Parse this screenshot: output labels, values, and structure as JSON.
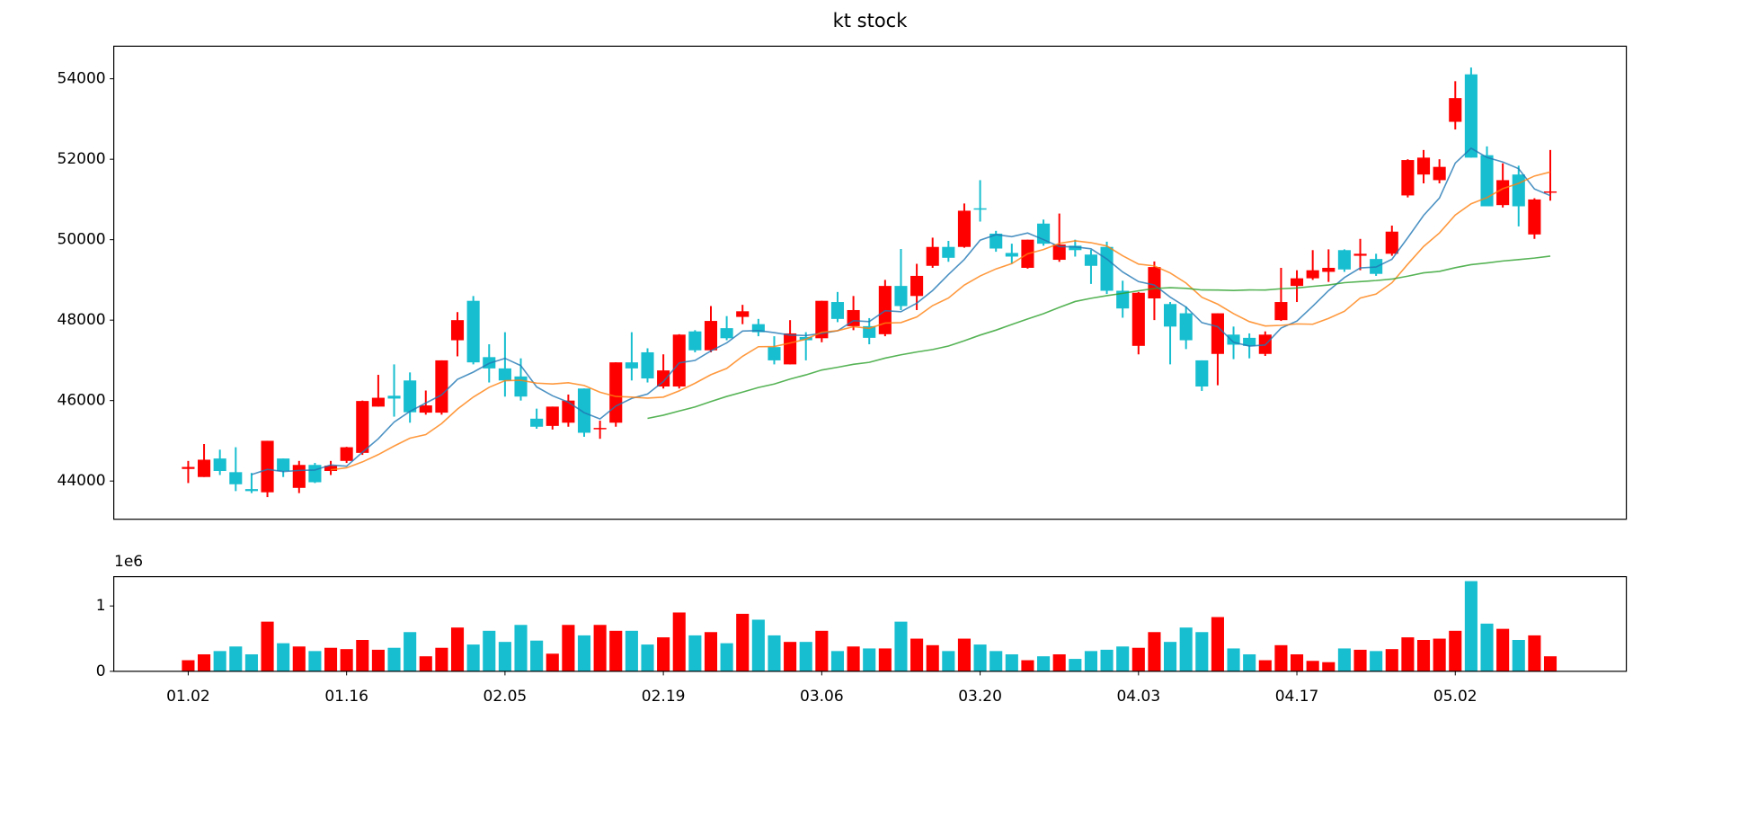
{
  "chart_data": [
    {
      "type": "candlestick",
      "title": "kt stock",
      "open": [
        44300,
        44100,
        44560,
        44220,
        43800,
        43720,
        44560,
        43830,
        44400,
        44250,
        44500,
        44700,
        45850,
        46120,
        46500,
        45700,
        45700,
        47500,
        48480,
        47080,
        46800,
        46600,
        45550,
        45370,
        45450,
        46300,
        45300,
        45450,
        46950,
        47200,
        46350,
        46350,
        47720,
        47250,
        47800,
        48080,
        47900,
        47330,
        46900,
        47580,
        47550,
        48450,
        47850,
        47850,
        47650,
        48850,
        48600,
        49350,
        49820,
        49820,
        50780,
        50150,
        49670,
        49300,
        50400,
        49500,
        49850,
        49630,
        49820,
        48730,
        47360,
        48540,
        48400,
        48170,
        47000,
        47160,
        47640,
        47560,
        47160,
        48000,
        48850,
        49040,
        49200,
        49740,
        49600,
        49520,
        49650,
        51100,
        51620,
        51480,
        52930,
        54110,
        52100,
        50860,
        51620,
        50130,
        51180
      ],
      "high": [
        44500,
        44920,
        44780,
        44840,
        44200,
        45000,
        44560,
        44500,
        44450,
        44500,
        44850,
        46000,
        46640,
        46900,
        46700,
        46250,
        47000,
        48200,
        48600,
        47400,
        47700,
        47050,
        45800,
        45850,
        46150,
        46300,
        45500,
        46950,
        47700,
        47300,
        47150,
        47650,
        47750,
        48350,
        48100,
        48380,
        48030,
        47600,
        48000,
        47700,
        48480,
        48700,
        48600,
        48050,
        49000,
        49770,
        49400,
        50050,
        49970,
        50900,
        51480,
        50220,
        49900,
        50000,
        50500,
        50650,
        50000,
        49750,
        49950,
        48980,
        48700,
        49460,
        48450,
        48340,
        47000,
        48170,
        47840,
        47670,
        47720,
        49300,
        49240,
        49740,
        49760,
        49760,
        50020,
        49650,
        50350,
        52000,
        52230,
        52000,
        53940,
        54280,
        52320,
        51900,
        51840,
        51030,
        52230
      ],
      "low": [
        43950,
        44100,
        44150,
        43750,
        43700,
        43600,
        44100,
        43700,
        43950,
        44150,
        44450,
        44650,
        45850,
        45600,
        45450,
        45650,
        45650,
        47100,
        46900,
        46450,
        46100,
        46000,
        45300,
        45280,
        45350,
        45100,
        45050,
        45350,
        46500,
        46450,
        46300,
        46300,
        47200,
        47200,
        47500,
        47900,
        47600,
        46900,
        46900,
        47000,
        47450,
        47950,
        47750,
        47400,
        47600,
        48250,
        48250,
        49300,
        49450,
        49800,
        50450,
        49700,
        49400,
        49280,
        49850,
        49450,
        49580,
        48900,
        48650,
        48060,
        47150,
        48000,
        46900,
        47280,
        46240,
        46380,
        47030,
        47050,
        47110,
        47980,
        48450,
        49000,
        48950,
        49200,
        49240,
        49100,
        49600,
        51050,
        51400,
        51400,
        52740,
        52040,
        50830,
        50800,
        50330,
        50020,
        50970
      ],
      "close": [
        44350,
        44530,
        44250,
        43920,
        43750,
        45000,
        44250,
        44400,
        43970,
        44380,
        44840,
        45990,
        46070,
        46050,
        45710,
        45880,
        47000,
        48000,
        46950,
        46800,
        46500,
        46100,
        45350,
        45850,
        46000,
        45200,
        45320,
        46950,
        46800,
        46550,
        46750,
        47640,
        47250,
        47980,
        47550,
        48220,
        47700,
        47000,
        47670,
        47500,
        48480,
        48030,
        48250,
        47560,
        48850,
        48350,
        49100,
        49820,
        49550,
        50720,
        50750,
        49780,
        49580,
        50000,
        49900,
        49880,
        49740,
        49350,
        48730,
        48290,
        48680,
        49320,
        47840,
        47500,
        46350,
        48170,
        47390,
        47360,
        47640,
        48450,
        49040,
        49240,
        49300,
        49260,
        49650,
        49150,
        50200,
        51980,
        52040,
        51810,
        53520,
        52040,
        50830,
        51480,
        50830,
        51000,
        51200
      ],
      "up_color": "#ff0000",
      "down_color": "#17becf",
      "series": [
        {
          "color": "#1f77b4",
          "values": [
            null,
            null,
            null,
            null,
            44160,
            44290,
            44234,
            44264,
            44274,
            44400,
            44368,
            44716,
            45050,
            45466,
            45732,
            45940,
            46142,
            46528,
            46708,
            46926,
            47050,
            46870,
            46340,
            46120,
            45960,
            45700,
            45544,
            45864,
            46054,
            46164,
            46474,
            46938,
            46998,
            47234,
            47434,
            47728,
            47740,
            47690,
            47628,
            47618,
            47670,
            47736,
            47986,
            47964,
            48234,
            48208,
            48422,
            48736,
            49134,
            49508,
            49988,
            50124,
            50076,
            50166,
            50002,
            49828,
            49820,
            49774,
            49520,
            49198,
            48958,
            48874,
            48572,
            48326,
            47938,
            47836,
            47450,
            47354,
            47382,
            47802,
            47976,
            48346,
            48734,
            49058,
            49298,
            49320,
            49512,
            50048,
            50604,
            51036,
            51904,
            52274,
            52044,
            51932,
            51766,
            51262,
            51094
          ]
        },
        {
          "color": "#ff7f0e",
          "values": [
            null,
            null,
            null,
            null,
            null,
            null,
            null,
            null,
            null,
            44280,
            44329,
            44475,
            44657,
            44870,
            45066,
            45154,
            45429,
            45789,
            46087,
            46329,
            46495,
            46506,
            46434,
            46414,
            46443,
            46375,
            46207,
            46102,
            46087,
            46062,
            46087,
            46241,
            46431,
            46644,
            46799,
            47101,
            47339,
            47344,
            47431,
            47526,
            47699,
            47738,
            47838,
            47796,
            47926,
            47939,
            48079,
            48361,
            48549,
            48871,
            49098,
            49273,
            49406,
            49650,
            49755,
            49908,
            49972,
            49925,
            49843,
            49600,
            49393,
            49347,
            49173,
            48923,
            48568,
            48397,
            48162,
            47963,
            47854,
            47870,
            47906,
            47898,
            48044,
            48220,
            48550,
            48648,
            48929,
            49391,
            49831,
            50167,
            50612,
            50893,
            51046,
            51268,
            51401,
            51583,
            51684
          ]
        },
        {
          "color": "#2ca02c",
          "values": [
            null,
            null,
            null,
            null,
            null,
            null,
            null,
            null,
            null,
            null,
            null,
            null,
            null,
            null,
            null,
            null,
            null,
            null,
            null,
            null,
            null,
            null,
            null,
            null,
            null,
            null,
            null,
            null,
            null,
            45557,
            45637,
            45741,
            45841,
            45976,
            46103,
            46210,
            46325,
            46412,
            46535,
            46639,
            46760,
            46828,
            46901,
            46951,
            47056,
            47138,
            47208,
            47269,
            47356,
            47486,
            47628,
            47751,
            47892,
            48030,
            48160,
            48316,
            48463,
            48543,
            48608,
            48666,
            48730,
            48786,
            48806,
            48790,
            48750,
            48748,
            48738,
            48750,
            48749,
            48780,
            48799,
            48839,
            48874,
            48931,
            48958,
            48984,
            49021,
            49093,
            49176,
            49212,
            49304,
            49379,
            49421,
            49470,
            49506,
            49543,
            49592
          ]
        }
      ],
      "xlim": [
        -4.7,
        90.8
      ],
      "ylim": [
        43050,
        54810
      ],
      "yticks": [
        44000,
        46000,
        48000,
        50000,
        52000,
        54000
      ]
    },
    {
      "type": "bar",
      "categories": [
        "01.02",
        null,
        null,
        null,
        null,
        null,
        null,
        null,
        null,
        null,
        "01.16",
        null,
        null,
        null,
        null,
        null,
        null,
        null,
        null,
        null,
        "02.05",
        null,
        null,
        null,
        null,
        null,
        null,
        null,
        null,
        null,
        "02.19",
        null,
        null,
        null,
        null,
        null,
        null,
        null,
        null,
        null,
        "03.06",
        null,
        null,
        null,
        null,
        null,
        null,
        null,
        null,
        null,
        "03.20",
        null,
        null,
        null,
        null,
        null,
        null,
        null,
        null,
        null,
        "04.03",
        null,
        null,
        null,
        null,
        null,
        null,
        null,
        null,
        null,
        "04.17",
        null,
        null,
        null,
        null,
        null,
        null,
        null,
        null,
        null,
        "05.02",
        null,
        null,
        null,
        null,
        null,
        null
      ],
      "values": [
        170000,
        260000,
        310000,
        380000,
        260000,
        760000,
        430000,
        380000,
        310000,
        360000,
        340000,
        480000,
        330000,
        360000,
        600000,
        230000,
        360000,
        670000,
        410000,
        620000,
        450000,
        710000,
        470000,
        270000,
        710000,
        550000,
        710000,
        620000,
        620000,
        410000,
        520000,
        900000,
        550000,
        600000,
        430000,
        880000,
        790000,
        550000,
        450000,
        450000,
        620000,
        310000,
        380000,
        350000,
        350000,
        760000,
        500000,
        400000,
        310000,
        500000,
        410000,
        310000,
        260000,
        170000,
        230000,
        260000,
        190000,
        310000,
        330000,
        380000,
        360000,
        600000,
        450000,
        670000,
        600000,
        830000,
        350000,
        260000,
        170000,
        400000,
        260000,
        160000,
        140000,
        350000,
        330000,
        310000,
        340000,
        520000,
        480000,
        500000,
        620000,
        1380000,
        730000,
        650000,
        480000,
        550000,
        230000
      ],
      "xlim": [
        -4.7,
        90.8
      ],
      "ylim": [
        0,
        1448000
      ],
      "yticks": [
        0,
        {
          "value": 1000000,
          "label": "1"
        }
      ],
      "offset_label": "1e6"
    }
  ]
}
